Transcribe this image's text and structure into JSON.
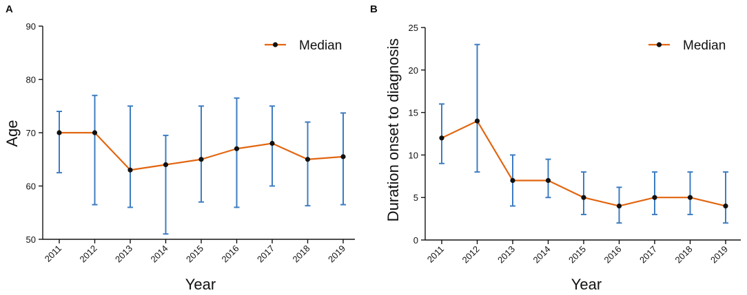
{
  "colors": {
    "line": "#E2650F",
    "error_bar": "#3D7CC0",
    "point": "#111111",
    "axis": "#111111"
  },
  "chart_data": [
    {
      "panel": "A",
      "type": "line",
      "title": "",
      "xlabel": "Year",
      "ylabel": "Age",
      "legend": {
        "label": "Median",
        "placement": "top-right"
      },
      "grid": false,
      "categories": [
        "2011",
        "2012",
        "2013",
        "2014",
        "2015",
        "2016",
        "2017",
        "2018",
        "2019"
      ],
      "ylim": [
        50,
        90
      ],
      "yticks": [
        50,
        60,
        70,
        80,
        90
      ],
      "series": [
        {
          "name": "Median",
          "values": [
            70,
            70,
            63,
            64,
            65,
            67,
            68,
            65,
            65.5
          ],
          "lower": [
            62.5,
            56.5,
            56,
            51,
            57,
            56,
            60,
            56.3,
            56.5
          ],
          "upper": [
            74,
            77,
            75,
            69.5,
            75,
            76.5,
            75,
            72,
            73.7
          ]
        }
      ]
    },
    {
      "panel": "B",
      "type": "line",
      "title": "",
      "xlabel": "Year",
      "ylabel": "Duration onset to diagnosis",
      "legend": {
        "label": "Median",
        "placement": "top-right"
      },
      "grid": false,
      "categories": [
        "2011",
        "2012",
        "2013",
        "2014",
        "2015",
        "2016",
        "2017",
        "2018",
        "2019"
      ],
      "ylim": [
        0,
        25
      ],
      "yticks": [
        0,
        5,
        10,
        15,
        20,
        25
      ],
      "series": [
        {
          "name": "Median",
          "values": [
            12,
            14,
            7,
            7,
            5,
            4,
            5,
            5,
            4
          ],
          "lower": [
            9,
            8,
            4,
            5,
            3,
            2,
            3,
            3,
            2
          ],
          "upper": [
            16,
            23,
            10,
            9.5,
            8,
            6.2,
            8,
            8,
            8
          ]
        }
      ]
    }
  ]
}
